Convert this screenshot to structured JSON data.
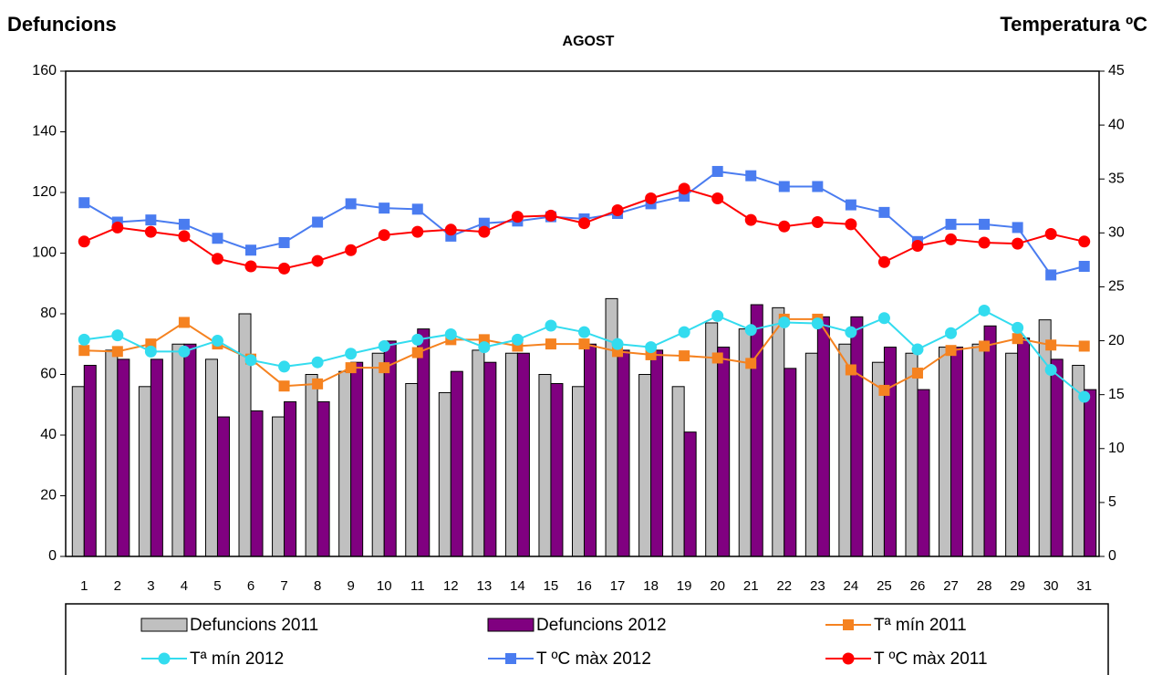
{
  "chart_data": {
    "type": "bar",
    "title": "AGOST",
    "y_label": "Defuncions",
    "y2_label": "Temperatura ºC",
    "categories": [
      "1",
      "2",
      "3",
      "4",
      "5",
      "6",
      "7",
      "8",
      "9",
      "10",
      "11",
      "12",
      "13",
      "14",
      "15",
      "16",
      "17",
      "18",
      "19",
      "20",
      "21",
      "22",
      "23",
      "24",
      "25",
      "26",
      "27",
      "28",
      "29",
      "30",
      "31"
    ],
    "ylim": [
      0,
      160
    ],
    "yticks": [
      0,
      20,
      40,
      60,
      80,
      100,
      120,
      140,
      160
    ],
    "y2lim": [
      0,
      45
    ],
    "y2ticks": [
      0,
      5,
      10,
      15,
      20,
      25,
      30,
      35,
      40,
      45
    ],
    "series": [
      {
        "name": "Defuncions 2011",
        "type": "bar",
        "color": "#c0c0c0",
        "values": [
          56,
          68,
          56,
          70,
          65,
          80,
          46,
          60,
          61,
          67,
          57,
          54,
          68,
          67,
          60,
          56,
          85,
          60,
          56,
          77,
          75,
          82,
          67,
          70,
          64,
          67,
          69,
          70,
          67,
          78,
          63
        ]
      },
      {
        "name": "Defuncions 2012",
        "type": "bar",
        "color": "#800080",
        "values": [
          63,
          65,
          65,
          70,
          46,
          48,
          51,
          51,
          64,
          71,
          75,
          61,
          64,
          67,
          57,
          70,
          68,
          68,
          41,
          69,
          83,
          62,
          79,
          79,
          69,
          55,
          69,
          76,
          72,
          65,
          55
        ]
      },
      {
        "name": "Tª mín 2011",
        "type": "line",
        "axis": "y2",
        "marker": "square",
        "color": "#f58220",
        "values": [
          19.1,
          19.0,
          19.7,
          21.7,
          19.7,
          18.3,
          15.8,
          16.0,
          17.5,
          17.5,
          18.9,
          20.1,
          20.1,
          19.5,
          19.7,
          19.7,
          19.0,
          18.7,
          18.6,
          18.4,
          17.9,
          22.0,
          22.0,
          17.3,
          15.4,
          17.0,
          19.1,
          19.5,
          20.2,
          19.6,
          19.5
        ]
      },
      {
        "name": "Tª mín 2012",
        "type": "line",
        "axis": "y2",
        "marker": "circle",
        "color": "#33dcef",
        "values": [
          20.1,
          20.5,
          19.0,
          19.0,
          20.0,
          18.2,
          17.6,
          18.0,
          18.8,
          19.5,
          20.1,
          20.6,
          19.4,
          20.1,
          21.4,
          20.8,
          19.7,
          19.4,
          20.8,
          22.3,
          21.0,
          21.7,
          21.6,
          20.8,
          22.1,
          19.2,
          20.7,
          22.8,
          21.2,
          17.3,
          14.8
        ]
      },
      {
        "name": "T ºC màx 2012",
        "type": "line",
        "axis": "y2",
        "marker": "square",
        "color": "#4a7cf0",
        "values": [
          32.8,
          31.0,
          31.2,
          30.8,
          29.5,
          28.4,
          29.1,
          31.0,
          32.7,
          32.3,
          32.2,
          29.7,
          30.9,
          31.1,
          31.5,
          31.3,
          31.8,
          32.7,
          33.4,
          35.7,
          35.3,
          34.3,
          34.3,
          32.6,
          31.9,
          29.2,
          30.8,
          30.8,
          30.5,
          26.1,
          26.9
        ]
      },
      {
        "name": "T ºC màx 2011",
        "type": "line",
        "axis": "y2",
        "marker": "circle",
        "color": "#ff0000",
        "values": [
          29.2,
          30.5,
          30.1,
          29.7,
          27.6,
          26.9,
          26.7,
          27.4,
          28.4,
          29.8,
          30.1,
          30.3,
          30.1,
          31.5,
          31.6,
          30.9,
          32.1,
          33.2,
          34.1,
          33.2,
          31.2,
          30.6,
          31.0,
          30.8,
          27.3,
          28.8,
          29.4,
          29.1,
          29.0,
          29.9,
          29.2
        ]
      }
    ]
  }
}
